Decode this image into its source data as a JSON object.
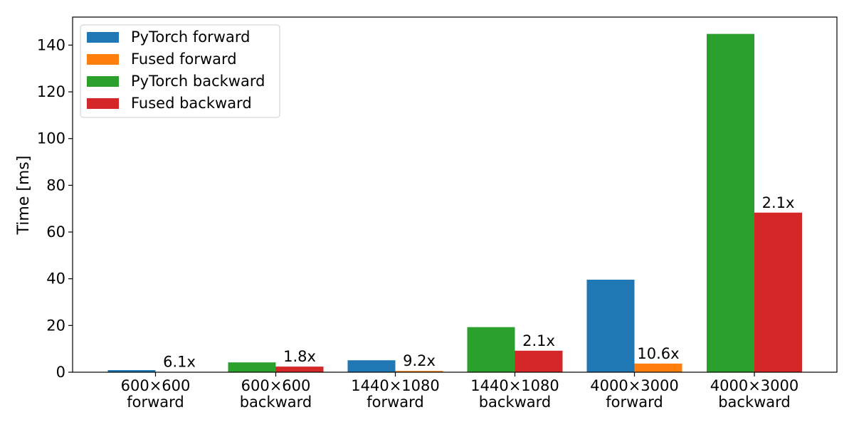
{
  "chart_data": {
    "type": "bar",
    "title": "",
    "xlabel": "",
    "ylabel": "Time [ms]",
    "ylim": [
      0,
      152
    ],
    "yticks": [
      0,
      20,
      40,
      60,
      80,
      100,
      120,
      140
    ],
    "grid": false,
    "legend_position": "top-left",
    "categories": [
      [
        "600×600",
        "forward"
      ],
      [
        "600×600",
        "backward"
      ],
      [
        "1440×1080",
        "forward"
      ],
      [
        "1440×1080",
        "backward"
      ],
      [
        "4000×3000",
        "forward"
      ],
      [
        "4000×3000",
        "backward"
      ]
    ],
    "series": [
      {
        "name": "PyTorch forward",
        "color": "#1f77b4",
        "values": [
          0.9,
          null,
          5.1,
          null,
          39.6,
          null
        ]
      },
      {
        "name": "Fused forward",
        "color": "#ff7f0e",
        "values": [
          0.15,
          null,
          0.55,
          null,
          3.7,
          null
        ]
      },
      {
        "name": "PyTorch backward",
        "color": "#2ca02c",
        "values": [
          null,
          4.2,
          null,
          19.3,
          null,
          144.8
        ]
      },
      {
        "name": "Fused backward",
        "color": "#d62728",
        "values": [
          null,
          2.4,
          null,
          9.2,
          null,
          68.3
        ]
      }
    ],
    "pairs": [
      {
        "category": 0,
        "left": "PyTorch forward",
        "right": "Fused forward",
        "label": "6.1x"
      },
      {
        "category": 1,
        "left": "PyTorch backward",
        "right": "Fused backward",
        "label": "1.8x"
      },
      {
        "category": 2,
        "left": "PyTorch forward",
        "right": "Fused forward",
        "label": "9.2x"
      },
      {
        "category": 3,
        "left": "PyTorch backward",
        "right": "Fused backward",
        "label": "2.1x"
      },
      {
        "category": 4,
        "left": "PyTorch forward",
        "right": "Fused forward",
        "label": "10.6x"
      },
      {
        "category": 5,
        "left": "PyTorch backward",
        "right": "Fused backward",
        "label": "2.1x"
      }
    ]
  }
}
